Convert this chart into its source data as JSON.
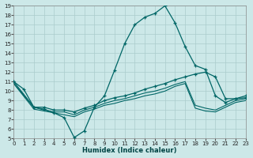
{
  "xlabel": "Humidex (Indice chaleur)",
  "bg_color": "#cce8e8",
  "grid_color": "#aacccc",
  "line_color": "#006666",
  "xlim": [
    0,
    23
  ],
  "ylim": [
    5,
    19
  ],
  "xticks": [
    0,
    1,
    2,
    3,
    4,
    5,
    6,
    7,
    8,
    9,
    10,
    11,
    12,
    13,
    14,
    15,
    16,
    17,
    18,
    19,
    20,
    21,
    22,
    23
  ],
  "yticks": [
    5,
    6,
    7,
    8,
    9,
    10,
    11,
    12,
    13,
    14,
    15,
    16,
    17,
    18,
    19
  ],
  "line1_x": [
    0,
    1,
    2,
    3,
    4,
    5,
    6,
    7,
    8,
    9,
    10,
    11,
    12,
    13,
    14,
    15,
    16,
    17,
    18,
    19,
    20,
    21,
    22,
    23
  ],
  "line1_y": [
    11.0,
    10.2,
    8.3,
    8.1,
    7.7,
    7.2,
    5.1,
    5.8,
    8.3,
    9.5,
    12.2,
    15.0,
    17.0,
    17.8,
    18.2,
    19.0,
    17.2,
    14.7,
    12.7,
    12.3,
    9.5,
    8.8,
    9.2,
    9.3
  ],
  "line2_x": [
    0,
    2,
    3,
    4,
    5,
    6,
    7,
    8,
    9,
    10,
    11,
    12,
    13,
    14,
    15,
    16,
    17,
    18,
    19,
    20,
    21,
    22,
    23
  ],
  "line2_y": [
    11.0,
    8.3,
    8.3,
    8.0,
    8.0,
    7.8,
    8.2,
    8.5,
    9.0,
    9.3,
    9.5,
    9.8,
    10.2,
    10.5,
    10.8,
    11.2,
    11.5,
    11.8,
    12.0,
    11.5,
    9.2,
    9.2,
    9.5
  ],
  "line3_x": [
    0,
    2,
    3,
    4,
    5,
    6,
    7,
    8,
    9,
    10,
    11,
    12,
    13,
    14,
    15,
    16,
    17,
    18,
    19,
    20,
    21,
    22,
    23
  ],
  "line3_y": [
    10.8,
    8.3,
    8.0,
    7.8,
    7.8,
    7.5,
    8.0,
    8.3,
    8.7,
    9.0,
    9.2,
    9.5,
    9.8,
    10.0,
    10.3,
    10.7,
    11.0,
    8.5,
    8.2,
    8.0,
    8.5,
    9.0,
    9.2
  ],
  "line4_x": [
    0,
    2,
    3,
    4,
    5,
    6,
    7,
    8,
    9,
    10,
    11,
    12,
    13,
    14,
    15,
    16,
    17,
    18,
    19,
    20,
    21,
    22,
    23
  ],
  "line4_y": [
    10.8,
    8.1,
    7.9,
    7.7,
    7.5,
    7.3,
    7.8,
    8.1,
    8.5,
    8.7,
    9.0,
    9.2,
    9.5,
    9.7,
    10.0,
    10.5,
    10.8,
    8.2,
    7.9,
    7.8,
    8.3,
    8.8,
    9.0
  ]
}
